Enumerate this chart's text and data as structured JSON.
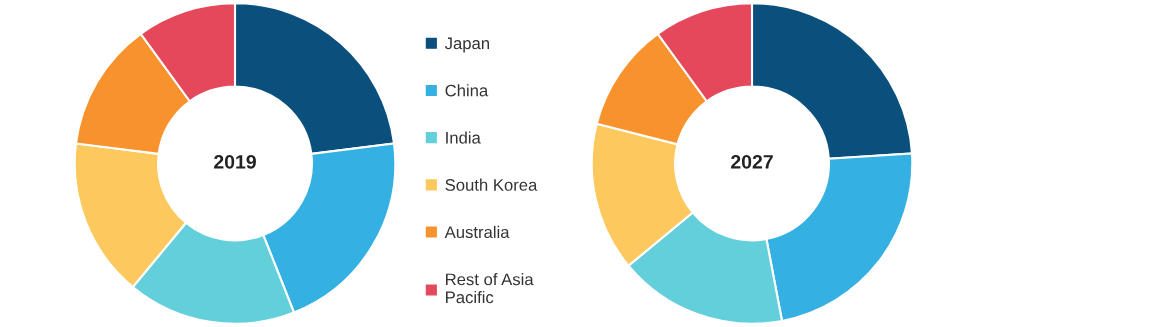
{
  "chart_data": [
    {
      "type": "donut",
      "title": "2019",
      "categories": [
        "Japan",
        "China",
        "India",
        "South Korea",
        "Australia",
        "Rest of Asia Pacific"
      ],
      "values": [
        23,
        21,
        17,
        16,
        13,
        10
      ],
      "colors": [
        "#0b4f7c",
        "#35b0e2",
        "#63cfdb",
        "#fdc85d",
        "#f7922c",
        "#e4485a"
      ],
      "legend": "right"
    },
    {
      "type": "donut",
      "title": "2027",
      "values": [
        24,
        23,
        17,
        15,
        11,
        10
      ],
      "colors": [
        "#0b4f7c",
        "#35b0e2",
        "#63cfdb",
        "#fdc85d",
        "#f7922c",
        "#e4485a"
      ]
    }
  ]
}
